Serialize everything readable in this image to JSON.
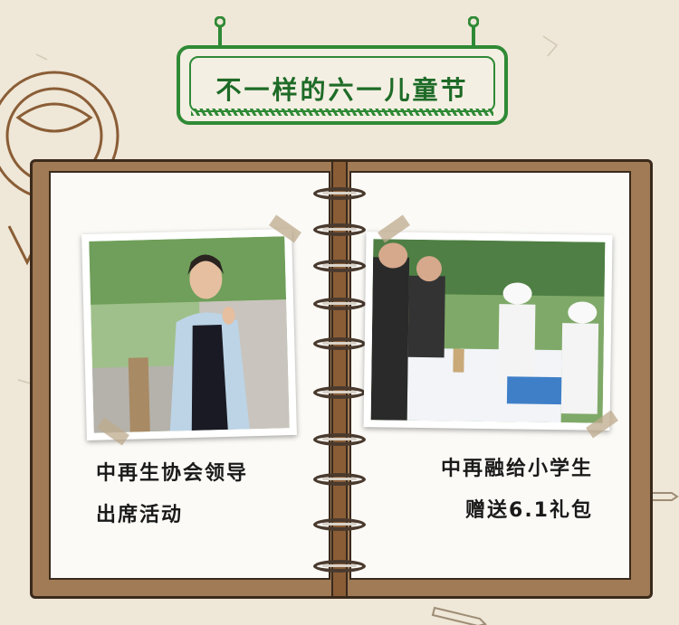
{
  "header": {
    "title": "不一样的六一儿童节"
  },
  "left_page": {
    "photo_alt": "woman-waving",
    "caption_line1": "中再生协会领导",
    "caption_line2": "出席活动"
  },
  "right_page": {
    "photo_alt": "gift-distribution",
    "caption_line1": "中再融给小学生",
    "caption_line2": "赠送6.1礼包"
  },
  "colors": {
    "title_green": "#2f8a35",
    "paper": "#efe7d7",
    "notebook_brown": "#a07b55"
  }
}
